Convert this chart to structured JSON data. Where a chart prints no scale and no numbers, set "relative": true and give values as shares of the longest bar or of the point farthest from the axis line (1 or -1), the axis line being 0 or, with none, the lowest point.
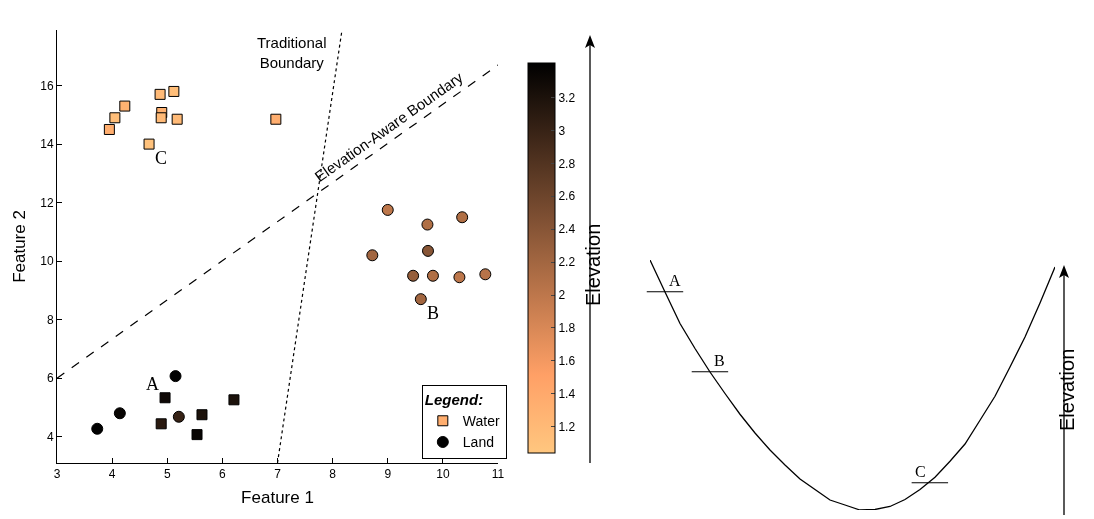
{
  "chart_data": [
    {
      "type": "scatter",
      "xlabel": "Feature 1",
      "ylabel": "Feature 2",
      "clabel": "Elevation",
      "legend_title": "Legend:",
      "legend": "bottom right",
      "xlim": [
        3,
        11
      ],
      "xticks": [
        3,
        4,
        5,
        6,
        7,
        8,
        9,
        10,
        11
      ],
      "ylim": [
        3.1,
        17.9
      ],
      "yticks": [
        4,
        6,
        8,
        10,
        12,
        14,
        16
      ],
      "clim": [
        1.04,
        3.41
      ],
      "cticks": [
        1.2,
        1.4,
        1.6,
        1.8,
        2,
        2.2,
        2.4,
        2.6,
        2.8,
        3,
        3.2
      ],
      "series": [
        {
          "name": "Water",
          "type": "scatter",
          "marker": "square",
          "x": [
            3.95,
            4.05,
            4.23,
            4.87,
            5.12,
            4.9,
            4.89,
            5.18,
            4.67,
            6.97,
            4.96,
            6.21,
            5.63,
            4.89,
            5.54
          ],
          "values": [
            14.5,
            14.9,
            15.3,
            15.7,
            15.8,
            15.08,
            14.9,
            14.85,
            14.0,
            14.85,
            5.33,
            5.26,
            4.75,
            4.44,
            4.07
          ],
          "colors": [
            "#ffae6f",
            "#ffbe79",
            "#ffb271",
            "#ffba77",
            "#ffbe79",
            "#ffb271",
            "#ffba77",
            "#ffba77",
            "#ffc27c",
            "#ffae6f",
            "#0f0906",
            "#1c120b",
            "#1c120b",
            "#2a1a10",
            "#080503"
          ]
        },
        {
          "name": "Land",
          "type": "scatter",
          "marker": "circle",
          "x": [
            5.15,
            4.14,
            3.73,
            5.21,
            9.0,
            9.72,
            10.35,
            8.72,
            9.73,
            9.46,
            9.82,
            10.3,
            10.77,
            9.6
          ],
          "values": [
            6.07,
            4.8,
            4.27,
            4.68,
            11.75,
            11.25,
            11.5,
            10.2,
            10.35,
            9.5,
            9.5,
            9.45,
            9.55,
            8.7
          ],
          "colors": [
            "#010101",
            "#080503",
            "#010101",
            "#372316",
            "#bd774b",
            "#b06f45",
            "#b06f45",
            "#a26640",
            "#875536",
            "#955e3b",
            "#b06f45",
            "#bd774b",
            "#b77349",
            "#a26640"
          ]
        },
        {
          "name": "Traditional Boundary",
          "type": "line",
          "line_style": "dotted",
          "color": "#000000",
          "x": [
            7,
            8.17
          ],
          "values": [
            3.1,
            17.9
          ]
        },
        {
          "name": "Elevation-Aware Boundary",
          "type": "line",
          "line_style": "dashed",
          "color": "#000000",
          "x": [
            3,
            11
          ],
          "values": [
            6,
            16.7
          ]
        }
      ],
      "annotations": [
        {
          "text": "A",
          "x": 4.96,
          "y": 5.33
        },
        {
          "text": "B",
          "x": 9.6,
          "y": 8.7
        },
        {
          "text": "C",
          "x": 4.67,
          "y": 14.0
        }
      ]
    },
    {
      "type": "line",
      "relative": true,
      "color": "#000000",
      "ylabel": "Elevation",
      "categories": [
        null,
        null,
        null,
        null,
        null,
        null,
        null,
        null,
        null,
        null,
        null,
        null,
        null,
        null,
        null,
        null,
        null,
        null,
        null,
        null,
        null,
        null,
        null,
        null,
        null,
        null,
        null,
        null
      ],
      "values": [
        1.0,
        0.872,
        0.746,
        0.646,
        0.552,
        0.466,
        0.383,
        0.308,
        0.24,
        0.18,
        0.124,
        0.082,
        0.04,
        0.02,
        0,
        0.002,
        0.014,
        0.042,
        0.082,
        0.131,
        0.195,
        0.264,
        0.359,
        0.455,
        0.572,
        0.692,
        0.828,
        0.972
      ],
      "annotations": [
        "A",
        "B",
        "C"
      ]
    }
  ]
}
